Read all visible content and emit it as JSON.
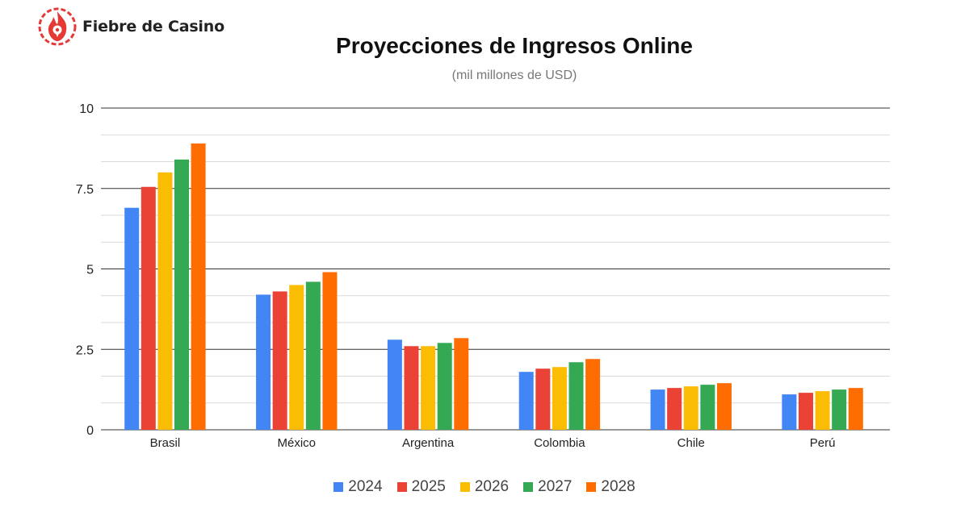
{
  "brand": {
    "name": "Fiebre de Casino"
  },
  "chart_data": {
    "type": "bar",
    "title": "Proyecciones de Ingresos Online",
    "subtitle": "(mil millones de USD)",
    "xlabel": "",
    "ylabel": "",
    "ylim": [
      0,
      10
    ],
    "yticks": [
      0,
      2.5,
      5,
      7.5,
      10
    ],
    "ytick_labels": [
      "0",
      "2.5",
      "5",
      "7.5",
      "10"
    ],
    "grid": true,
    "legend_position": "bottom",
    "categories": [
      "Brasil",
      "México",
      "Argentina",
      "Colombia",
      "Chile",
      "Perú"
    ],
    "series": [
      {
        "name": "2024",
        "color": "#4285f4",
        "values": [
          6.9,
          4.2,
          2.8,
          1.8,
          1.25,
          1.1
        ]
      },
      {
        "name": "2025",
        "color": "#ea4335",
        "values": [
          7.55,
          4.3,
          2.6,
          1.9,
          1.3,
          1.15
        ]
      },
      {
        "name": "2026",
        "color": "#fbbc04",
        "values": [
          8.0,
          4.5,
          2.6,
          1.95,
          1.35,
          1.2
        ]
      },
      {
        "name": "2027",
        "color": "#34a853",
        "values": [
          8.4,
          4.6,
          2.7,
          2.1,
          1.4,
          1.25
        ]
      },
      {
        "name": "2028",
        "color": "#ff6d01",
        "values": [
          8.9,
          4.9,
          2.85,
          2.2,
          1.45,
          1.3
        ]
      }
    ]
  }
}
